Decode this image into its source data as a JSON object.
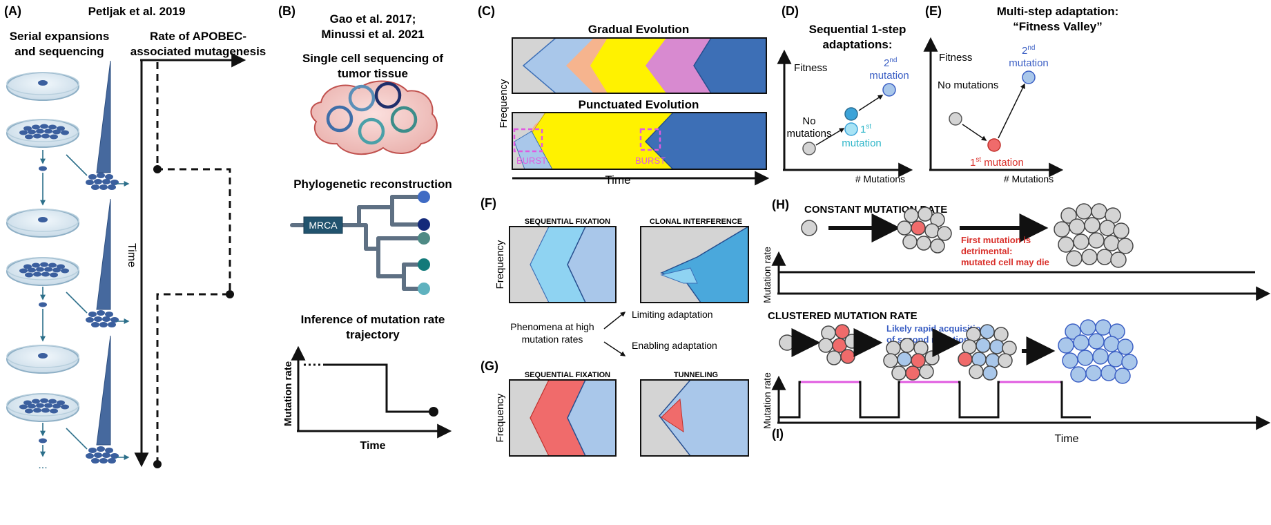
{
  "panel_a": {
    "letter": "(A)",
    "citation": "Petljak et al. 2019",
    "col1_line1": "Serial expansions",
    "col1_line2": "and sequencing",
    "col2_line1": "Rate of APOBEC-",
    "col2_line2": "associated mutagenesis",
    "time_label": "Time",
    "ellipsis": "..."
  },
  "panel_b": {
    "letter": "(B)",
    "citation_line1": "Gao et al. 2017;",
    "citation_line2": "Minussi et al. 2021",
    "section1_line1": "Single cell sequencing of",
    "section1_line2": "tumor tissue",
    "section2": "Phylogenetic reconstruction",
    "mrca_label": "MRCA",
    "section3_line1": "Inference of mutation rate",
    "section3_line2": "trajectory",
    "ylabel": "Mutation rate",
    "xlabel": "Time"
  },
  "panel_c": {
    "letter": "(C)",
    "top_title": "Gradual Evolution",
    "bottom_title": "Punctuated Evolution",
    "ylabel": "Frequency",
    "xlabel": "Time",
    "burst_label_1": "BURST",
    "burst_label_2": "BURST"
  },
  "panel_d": {
    "letter": "(D)",
    "title_line1": "Sequential 1-step",
    "title_line2": "adaptations:",
    "ylabel": "Fitness",
    "xlabel": "# Mutations",
    "label_none_1": "No",
    "label_none_2": "mutations",
    "label_first_num": "1",
    "label_first_sup": "st",
    "label_first_word": "mutation",
    "label_second_num": "2",
    "label_second_sup": "nd",
    "label_second_word": "mutation"
  },
  "panel_e": {
    "letter": "(E)",
    "title_line1": "Multi-step adaptation:",
    "title_line2": "“Fitness Valley”",
    "ylabel": "Fitness",
    "xlabel": "# Mutations",
    "label_none": "No mutations",
    "label_first_num": "1",
    "label_first_sup": "st",
    "label_first_word": " mutation",
    "label_second_num": "2",
    "label_second_sup": "nd",
    "label_second_word": "mutation"
  },
  "panel_f": {
    "letter": "(F)",
    "left_title": "SEQUENTIAL FIXATION",
    "right_title": "CLONAL INTERFERENCE",
    "ylabel": "Frequency"
  },
  "middle": {
    "phen_line1": "Phenomena at high",
    "phen_line2": "mutation rates",
    "limiting": "Limiting adaptation",
    "enabling": "Enabling adaptation"
  },
  "panel_g": {
    "letter": "(G)",
    "left_title": "SEQUENTIAL FIXATION",
    "right_title": "TUNNELING",
    "ylabel": "Frequency"
  },
  "panel_h": {
    "letter": "(H)",
    "title": "CONSTANT MUTATION RATE",
    "note_line1": "First mutation is",
    "note_line2": "detrimental:",
    "note_line3": "mutated cell may die",
    "ylabel": "Mutation rate"
  },
  "panel_i": {
    "letter": "(I)",
    "title": "CLUSTERED MUTATION RATE",
    "note_line1": "Likely rapid acquisition",
    "note_line2": "of second mutation",
    "ylabel": "Mutation rate",
    "xlabel": "Time"
  },
  "colors": {
    "grey": "#d4d4d4",
    "dark_blue": "#3d6fb6",
    "light_blue": "#a9c7ea",
    "cyan": "#8fd3f2",
    "yellow": "#fff200",
    "peach": "#f6b48e",
    "pink": "#d88ad0",
    "red": "#f06b6b",
    "magenta": "#e05ae0",
    "text_red": "#d9302b",
    "text_blue": "#3b5fc4",
    "text_cyan": "#2eb6c9"
  }
}
